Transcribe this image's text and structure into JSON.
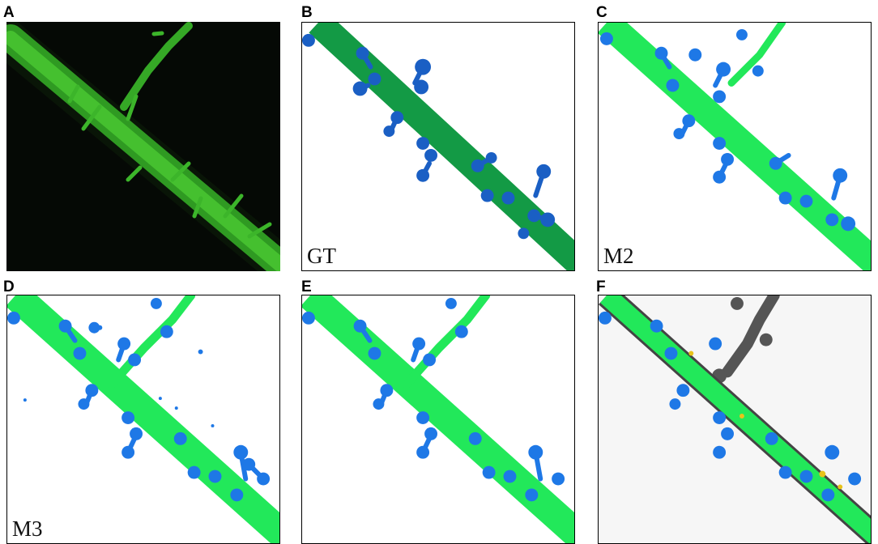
{
  "figure": {
    "panels": [
      {
        "letter": "A",
        "label": "",
        "style": "raw"
      },
      {
        "letter": "B",
        "label": "GT",
        "style": "gt"
      },
      {
        "letter": "C",
        "label": "M2",
        "style": "pred"
      },
      {
        "letter": "D",
        "label": "M3",
        "style": "pred"
      },
      {
        "letter": "E",
        "label": "",
        "style": "pred"
      },
      {
        "letter": "F",
        "label": "",
        "style": "diff"
      }
    ]
  },
  "colors": {
    "raw_background": "#050905",
    "raw_signal": "#3fbf2a",
    "gt_dendrite": "#139a45",
    "gt_spine": "#1a5fc4",
    "pred_dendrite": "#22e85a",
    "pred_spine": "#1e78e6",
    "diff_background": "#f6f6f6",
    "diff_missing": "#555555",
    "diff_error": "#e8c31a"
  }
}
